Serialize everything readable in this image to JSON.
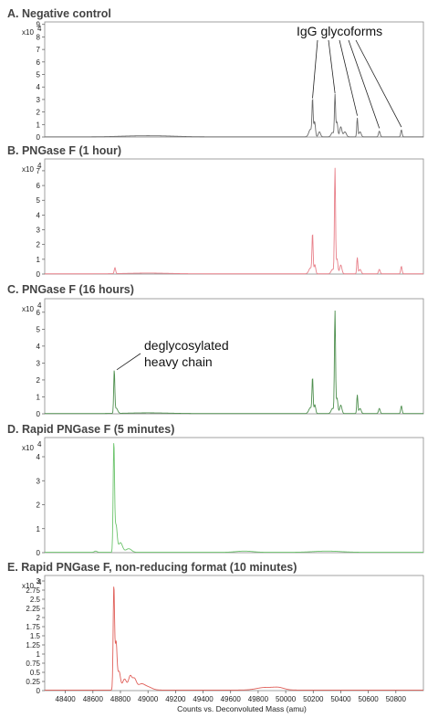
{
  "chart_data": [
    {
      "type": "line",
      "title": "A. Negative control",
      "y_scale_label": "x10",
      "y_scale_exp": "4",
      "ylim": [
        0,
        9.2
      ],
      "y_ticks": [
        "0",
        "1",
        "2",
        "3",
        "4",
        "5",
        "6",
        "7",
        "8",
        "9"
      ],
      "xlim": [
        48250,
        51000
      ],
      "color": "#6b6b6b",
      "peaks": [
        {
          "x": 48900,
          "y": 0.06,
          "w": 120
        },
        {
          "x": 49100,
          "y": 0.06,
          "w": 120
        },
        {
          "x": 50180,
          "y": 0.6,
          "w": 12
        },
        {
          "x": 50195,
          "y": 2.8,
          "w": 4
        },
        {
          "x": 50210,
          "y": 1.2,
          "w": 6
        },
        {
          "x": 50245,
          "y": 0.4,
          "w": 8
        },
        {
          "x": 50340,
          "y": 0.35,
          "w": 10
        },
        {
          "x": 50358,
          "y": 3.3,
          "w": 4
        },
        {
          "x": 50372,
          "y": 1.2,
          "w": 6
        },
        {
          "x": 50400,
          "y": 0.8,
          "w": 8
        },
        {
          "x": 50430,
          "y": 0.4,
          "w": 10
        },
        {
          "x": 50520,
          "y": 1.5,
          "w": 4
        },
        {
          "x": 50540,
          "y": 0.4,
          "w": 8
        },
        {
          "x": 50680,
          "y": 0.45,
          "w": 6
        },
        {
          "x": 50840,
          "y": 0.55,
          "w": 5
        }
      ],
      "annotations": [
        {
          "text": "IgG glycoforms",
          "targets": [
            {
              "x": 50195,
              "y": 3.1
            },
            {
              "x": 50358,
              "y": 3.5
            },
            {
              "x": 50520,
              "y": 1.7
            },
            {
              "x": 50680,
              "y": 0.7
            },
            {
              "x": 50840,
              "y": 0.8
            }
          ]
        }
      ]
    },
    {
      "type": "line",
      "title": "B. PNGase F (1 hour)",
      "y_scale_label": "x10",
      "y_scale_exp": "4",
      "ylim": [
        0,
        7.8
      ],
      "y_ticks": [
        "0",
        "1",
        "2",
        "3",
        "4",
        "5",
        "6",
        "7"
      ],
      "xlim": [
        48250,
        51000
      ],
      "color": "#e8808a",
      "peaks": [
        {
          "x": 48760,
          "y": 0.4,
          "w": 5
        },
        {
          "x": 49000,
          "y": 0.05,
          "w": 150
        },
        {
          "x": 50180,
          "y": 0.4,
          "w": 12
        },
        {
          "x": 50195,
          "y": 2.6,
          "w": 4
        },
        {
          "x": 50212,
          "y": 0.6,
          "w": 6
        },
        {
          "x": 50340,
          "y": 0.3,
          "w": 10
        },
        {
          "x": 50358,
          "y": 7.1,
          "w": 4
        },
        {
          "x": 50373,
          "y": 1.0,
          "w": 6
        },
        {
          "x": 50400,
          "y": 0.6,
          "w": 8
        },
        {
          "x": 50520,
          "y": 1.1,
          "w": 4
        },
        {
          "x": 50540,
          "y": 0.3,
          "w": 8
        },
        {
          "x": 50680,
          "y": 0.3,
          "w": 6
        },
        {
          "x": 50840,
          "y": 0.5,
          "w": 5
        }
      ],
      "annotations": []
    },
    {
      "type": "line",
      "title": "C. PNGase F (16 hours)",
      "y_scale_label": "x10",
      "y_scale_exp": "4",
      "ylim": [
        0,
        6.8
      ],
      "y_ticks": [
        "0",
        "1",
        "2",
        "3",
        "4",
        "5",
        "6"
      ],
      "xlim": [
        48250,
        51000
      ],
      "color": "#4e8f4e",
      "peaks": [
        {
          "x": 48755,
          "y": 2.5,
          "w": 4
        },
        {
          "x": 48770,
          "y": 0.3,
          "w": 10
        },
        {
          "x": 49000,
          "y": 0.04,
          "w": 150
        },
        {
          "x": 50180,
          "y": 0.35,
          "w": 12
        },
        {
          "x": 50195,
          "y": 2.0,
          "w": 4
        },
        {
          "x": 50212,
          "y": 0.5,
          "w": 6
        },
        {
          "x": 50340,
          "y": 0.3,
          "w": 10
        },
        {
          "x": 50358,
          "y": 6.0,
          "w": 4
        },
        {
          "x": 50373,
          "y": 0.9,
          "w": 6
        },
        {
          "x": 50400,
          "y": 0.5,
          "w": 8
        },
        {
          "x": 50520,
          "y": 1.1,
          "w": 4
        },
        {
          "x": 50540,
          "y": 0.3,
          "w": 8
        },
        {
          "x": 50680,
          "y": 0.3,
          "w": 6
        },
        {
          "x": 50840,
          "y": 0.45,
          "w": 5
        }
      ],
      "annotations": [
        {
          "text": "deglycosylated",
          "text2": "heavy chain",
          "targets": [
            {
              "x": 48760,
              "y": 2.6
            }
          ]
        }
      ]
    },
    {
      "type": "line",
      "title": "D. Rapid PNGase F (5 minutes)",
      "y_scale_label": "x10",
      "y_scale_exp": "4",
      "ylim": [
        0,
        4.8
      ],
      "y_ticks": [
        "0",
        "1",
        "2",
        "3",
        "4"
      ],
      "xlim": [
        48250,
        51000
      ],
      "color": "#6cc46c",
      "peaks": [
        {
          "x": 48620,
          "y": 0.05,
          "w": 10
        },
        {
          "x": 48752,
          "y": 4.5,
          "w": 5
        },
        {
          "x": 48768,
          "y": 1.1,
          "w": 8
        },
        {
          "x": 48800,
          "y": 0.4,
          "w": 15
        },
        {
          "x": 48860,
          "y": 0.15,
          "w": 20
        },
        {
          "x": 49700,
          "y": 0.05,
          "w": 60
        },
        {
          "x": 50300,
          "y": 0.05,
          "w": 100
        }
      ],
      "annotations": []
    },
    {
      "type": "line",
      "title": "E. Rapid PNGase F, non-reducing format (10 minutes)",
      "y_scale_label": "x10",
      "y_scale_exp": "4",
      "ylim": [
        0,
        3.15
      ],
      "y_ticks": [
        "0",
        "0.25",
        "0.5",
        "0.75",
        "1",
        "1.25",
        "1.5",
        "1.75",
        "2",
        "2.25",
        "2.5",
        "2.75",
        "3"
      ],
      "xlim": [
        48250,
        51000
      ],
      "color": "#e0605a",
      "peaks": [
        {
          "x": 48752,
          "y": 2.8,
          "w": 5
        },
        {
          "x": 48768,
          "y": 1.3,
          "w": 7
        },
        {
          "x": 48790,
          "y": 0.5,
          "w": 10
        },
        {
          "x": 48830,
          "y": 0.3,
          "w": 15
        },
        {
          "x": 48870,
          "y": 0.35,
          "w": 12
        },
        {
          "x": 48900,
          "y": 0.3,
          "w": 15
        },
        {
          "x": 48950,
          "y": 0.15,
          "w": 25
        },
        {
          "x": 49000,
          "y": 0.08,
          "w": 30
        },
        {
          "x": 49850,
          "y": 0.07,
          "w": 60
        },
        {
          "x": 49950,
          "y": 0.06,
          "w": 40
        }
      ],
      "annotations": []
    }
  ],
  "x_axis": {
    "ticks": [
      "48400",
      "48600",
      "48800",
      "49000",
      "49200",
      "49400",
      "49600",
      "49800",
      "50000",
      "50200",
      "50400",
      "50600",
      "50800"
    ],
    "label": "Counts vs. Deconvoluted Mass (amu)"
  }
}
